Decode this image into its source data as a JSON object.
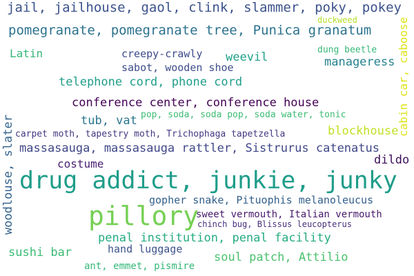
{
  "words": [
    {
      "text": "jail, jailhouse, gaol, clink, slammer, poky, pokey",
      "color": "#3b528b"
    },
    {
      "text": "pomegranate, pomegranate tree, Punica granatum",
      "color": "#2c728e"
    },
    {
      "text": "duckweed",
      "color": "#b5de2b"
    },
    {
      "text": "cabin car, caboose",
      "color": "#dde318"
    },
    {
      "text": "Latin",
      "color": "#35b779"
    },
    {
      "text": "creepy-crawly",
      "color": "#3e4a89"
    },
    {
      "text": "weevil",
      "color": "#1fa088"
    },
    {
      "text": "dung beetle",
      "color": "#37b878"
    },
    {
      "text": "manageress",
      "color": "#26828e"
    },
    {
      "text": "sabot, wooden shoe",
      "color": "#3e4c8a"
    },
    {
      "text": "telephone cord, phone cord",
      "color": "#1f9e89"
    },
    {
      "text": "conference center, conference house",
      "color": "#440154"
    },
    {
      "text": "woodlouse, slater",
      "color": "#33638d"
    },
    {
      "text": "tub, vat",
      "color": "#2a768e"
    },
    {
      "text": "pop, soda, soda pop, soda water, tonic",
      "color": "#3dbc74"
    },
    {
      "text": "carpet moth, tapestry moth, Trichophaga tapetzella",
      "color": "#453781"
    },
    {
      "text": "blockhouse",
      "color": "#c2df23"
    },
    {
      "text": "massasauga, massasauga rattler, Sistrurus catenatus",
      "color": "#3f4788"
    },
    {
      "text": "costume",
      "color": "#481f70"
    },
    {
      "text": "dildo",
      "color": "#3c0f59"
    },
    {
      "text": "drug addict, junkie, junky",
      "color": "#1f9d8a"
    },
    {
      "text": "gopher snake, Pituophis melanoleucus",
      "color": "#34608d"
    },
    {
      "text": "pillory",
      "color": "#75d054"
    },
    {
      "text": "sweet vermouth, Italian vermouth",
      "color": "#481a6c"
    },
    {
      "text": "chinch bug, Blissus leucopterus",
      "color": "#46307e"
    },
    {
      "text": "penal institution, penal facility",
      "color": "#25ab82"
    },
    {
      "text": "sushi bar",
      "color": "#3bbb75"
    },
    {
      "text": "hand luggage",
      "color": "#3b528b"
    },
    {
      "text": "soul patch, Attilio",
      "color": "#4ac16d"
    },
    {
      "text": "ant, emmet, pismire",
      "color": "#35b779"
    }
  ]
}
